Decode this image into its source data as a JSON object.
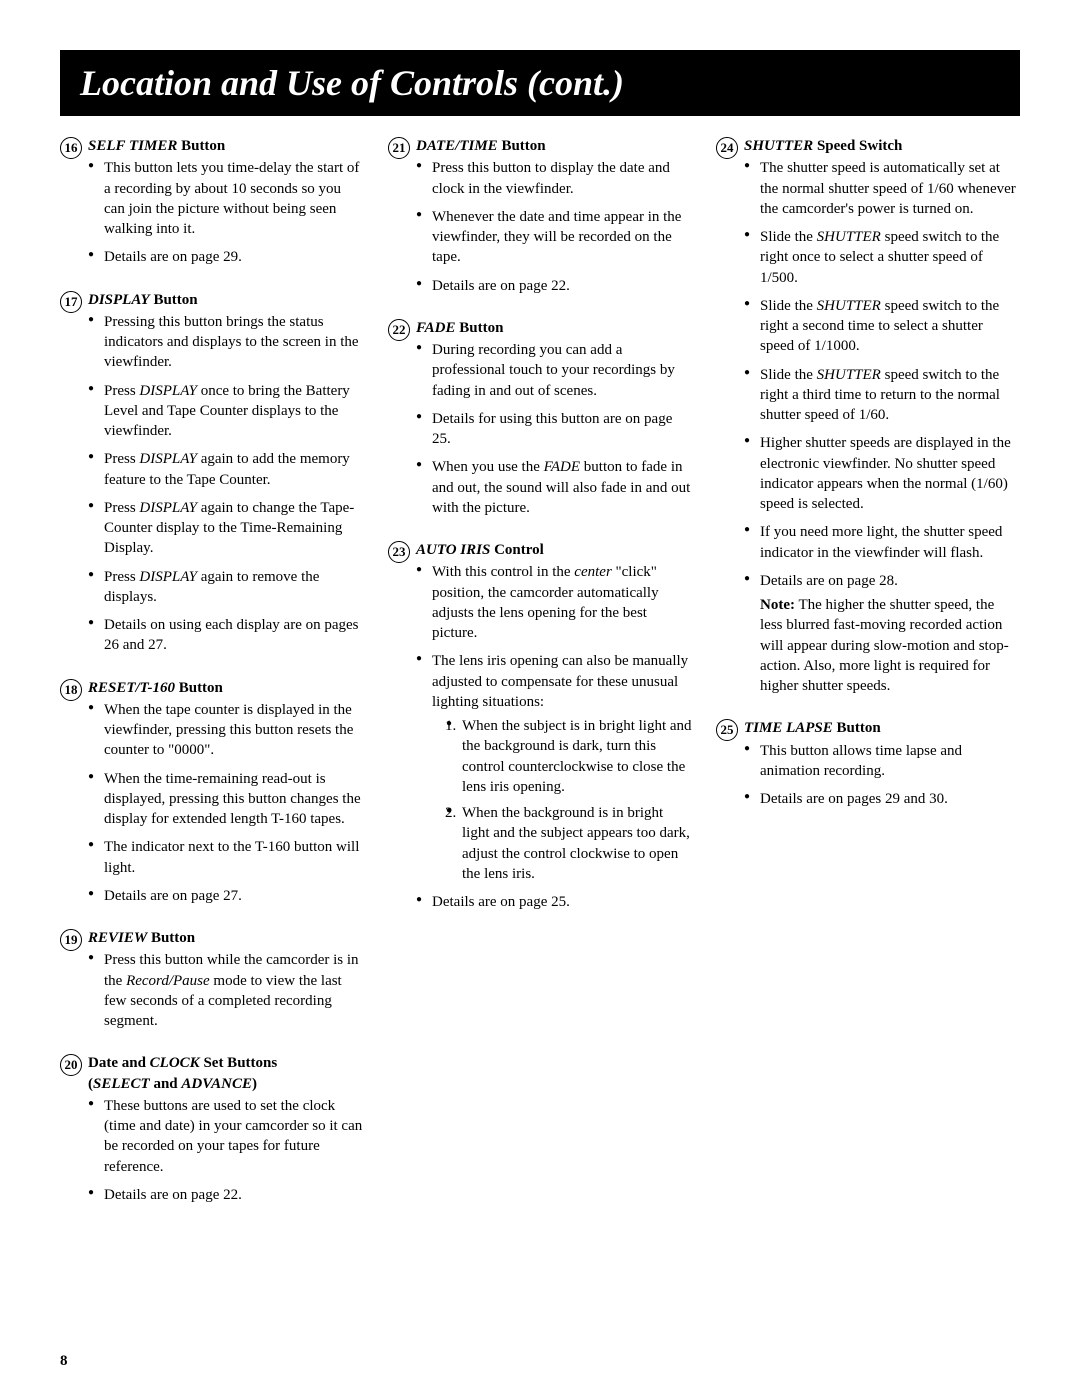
{
  "header": "Location and Use of Controls (cont.)",
  "page_number": "8",
  "columns": [
    {
      "sections": [
        {
          "num": "16",
          "title_italic": "SELF TIMER",
          "title_rest": " Button",
          "bullets": [
            "This button lets you time-delay the start of a recording by about 10 seconds so you can join the picture without being seen walking into it.",
            "Details are on page 29."
          ]
        },
        {
          "num": "17",
          "title_italic": "DISPLAY",
          "title_rest": " Button",
          "bullets": [
            "Pressing this button brings the status indicators and displays to the screen in the viewfinder.",
            "Press <span class='ital'>DISPLAY</span> once to bring the Battery Level and Tape Counter displays to the viewfinder.",
            "Press <span class='ital'>DISPLAY</span> again to add the memory feature to the Tape Counter.",
            "Press <span class='ital'>DISPLAY</span> again to change the Tape-Counter display to the Time-Remaining Display.",
            "Press <span class='ital'>DISPLAY</span> again to remove the displays.",
            "Details on using each display are on pages 26 and 27."
          ]
        },
        {
          "num": "18",
          "title_italic": "RESET/T-160",
          "title_rest": " Button",
          "bullets": [
            "When the tape counter is displayed in the viewfinder, pressing this button resets the counter to \"0000\".",
            "When the time-remaining read-out is displayed, pressing this button changes the display for extended length T-160 tapes.",
            "The indicator next to the T-160 button will light.",
            "Details are on page 27."
          ]
        },
        {
          "num": "19",
          "title_italic": "REVIEW",
          "title_rest": " Button",
          "bullets": [
            "Press this button while the camcorder is in the <span class='ital'>Record/Pause</span> mode to view the last few seconds of a completed recording segment."
          ]
        },
        {
          "num": "20",
          "title_html": "<span class='nonitalic'>Date and </span><span class='ital'>CLOCK</span><span class='nonitalic'> Set Buttons</span><br><span class='nonitalic'>(</span><span class='ital'>SELECT</span><span class='nonitalic'> and </span><span class='ital'>ADVANCE</span><span class='nonitalic'>)</span>",
          "bullets": [
            "These buttons are used to set the clock (time and date) in your camcorder so it can be recorded on your tapes for future reference.",
            "Details are on page 22."
          ]
        }
      ]
    },
    {
      "sections": [
        {
          "num": "21",
          "title_italic": "DATE/TIME",
          "title_rest": " Button",
          "bullets": [
            "Press this button to display the date and clock in the viewfinder.",
            "Whenever the date and time appear in the viewfinder, they will be recorded on the tape.",
            "Details are on page 22."
          ]
        },
        {
          "num": "22",
          "title_italic": "FADE",
          "title_rest": " Button",
          "bullets": [
            "During recording you can add a professional touch to your recordings by fading in and out of scenes.",
            "Details for using this button are on page 25.",
            "When you use the <span class='ital'>FADE</span> button to fade in and out, the sound will also fade in and out with the picture."
          ]
        },
        {
          "num": "23",
          "title_italic": "AUTO IRIS",
          "title_rest": " Control",
          "bullets": [
            "With this control in the <span class='ital'>center</span> \"click\" position, the camcorder automatically adjusts the lens opening for the best picture.",
            "The lens iris opening can also be manually adjusted to compensate for these unusual lighting situations:<ol><li>When the subject is in bright light and the background is dark, turn this control counterclockwise to close the lens iris opening.</li><li>When the background is in bright light and the subject appears too dark, adjust the control clockwise to open the lens iris.</li></ol>",
            "Details are on page 25."
          ]
        }
      ]
    },
    {
      "sections": [
        {
          "num": "24",
          "title_italic": "SHUTTER",
          "title_rest": " Speed Switch",
          "bullets": [
            "The shutter speed is automatically set at the normal shutter speed of 1/60 whenever the camcorder's power is turned on.",
            "Slide the <span class='ital'>SHUTTER</span> speed switch to the right once to select a shutter speed of 1/500.",
            "Slide the <span class='ital'>SHUTTER</span> speed switch to the right a second time to select a shutter speed of 1/1000.",
            "Slide the <span class='ital'>SHUTTER</span> speed switch to the right a third time to return to the normal shutter speed of 1/60.",
            "Higher shutter speeds are displayed in the electronic viewfinder. No shutter speed indicator appears when the normal (1/60) speed is selected.",
            "If you need more light, the shutter speed indicator in the viewfinder will flash.",
            "Details are on page 28.<div class='sub'><span class='bold'>Note:</span> The higher the shutter speed, the less blurred fast-moving recorded action will appear during slow-motion and stop-action. Also, more light is required for higher shutter speeds.</div>"
          ]
        },
        {
          "num": "25",
          "title_italic": "TIME LAPSE",
          "title_rest": " Button",
          "bullets": [
            "This button allows time lapse and animation recording.",
            "Details are on pages 29 and 30."
          ]
        }
      ]
    }
  ]
}
